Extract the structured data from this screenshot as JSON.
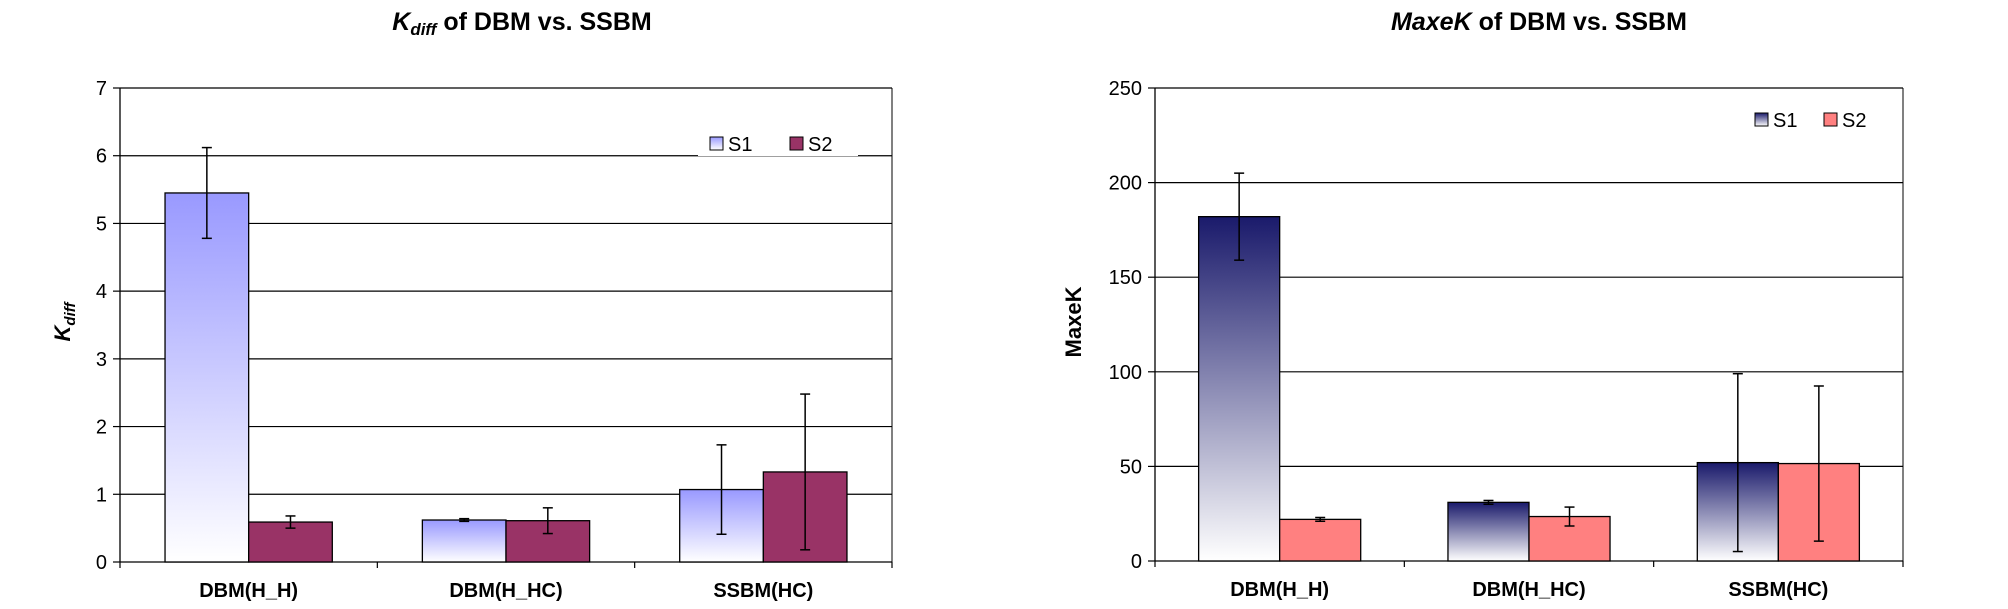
{
  "chart_data": [
    {
      "type": "bar",
      "title_main": "K",
      "title_sub": "diff",
      "title_rest": " of DBM vs. SSBM",
      "ylabel_main": "K",
      "ylabel_sub": "diff",
      "xlabel": "",
      "categories": [
        "DBM(H_H)",
        "DBM(H_HC)",
        "SSBM(HC)"
      ],
      "ylim": [
        0,
        7
      ],
      "yticks": [
        "0",
        "1",
        "2",
        "3",
        "4",
        "5",
        "6",
        "7"
      ],
      "ytick_values": [
        0,
        1,
        2,
        3,
        4,
        5,
        6,
        7
      ],
      "grid": true,
      "legend_position": "top-right",
      "series": [
        {
          "name": "S1",
          "values": [
            5.45,
            0.62,
            1.07
          ],
          "errors": [
            0.67,
            0.02,
            0.66
          ],
          "color_top": "#9999ff",
          "color_bottom": "#ffffff"
        },
        {
          "name": "S2",
          "values": [
            0.59,
            0.61,
            1.33
          ],
          "errors": [
            0.09,
            0.19,
            1.15
          ],
          "color": "#993366"
        }
      ]
    },
    {
      "type": "bar",
      "title_main": "MaxeK",
      "title_rest": " of DBM vs. SSBM",
      "ylabel": "MaxeK",
      "xlabel": "",
      "categories": [
        "DBM(H_H)",
        "DBM(H_HC)",
        "SSBM(HC)"
      ],
      "ylim": [
        0,
        250
      ],
      "yticks": [
        "0",
        "50",
        "100",
        "150",
        "200",
        "250"
      ],
      "ytick_values": [
        0,
        50,
        100,
        150,
        200,
        250
      ],
      "grid": true,
      "legend_position": "top-right",
      "series": [
        {
          "name": "S1",
          "values": [
            182,
            31,
            52
          ],
          "errors": [
            23,
            1,
            47
          ],
          "color_top": "#1a1a6b",
          "color_bottom": "#ffffff"
        },
        {
          "name": "S2",
          "values": [
            22,
            23.5,
            51.5
          ],
          "errors": [
            1,
            5,
            41
          ],
          "color": "#ff8080"
        }
      ]
    }
  ]
}
